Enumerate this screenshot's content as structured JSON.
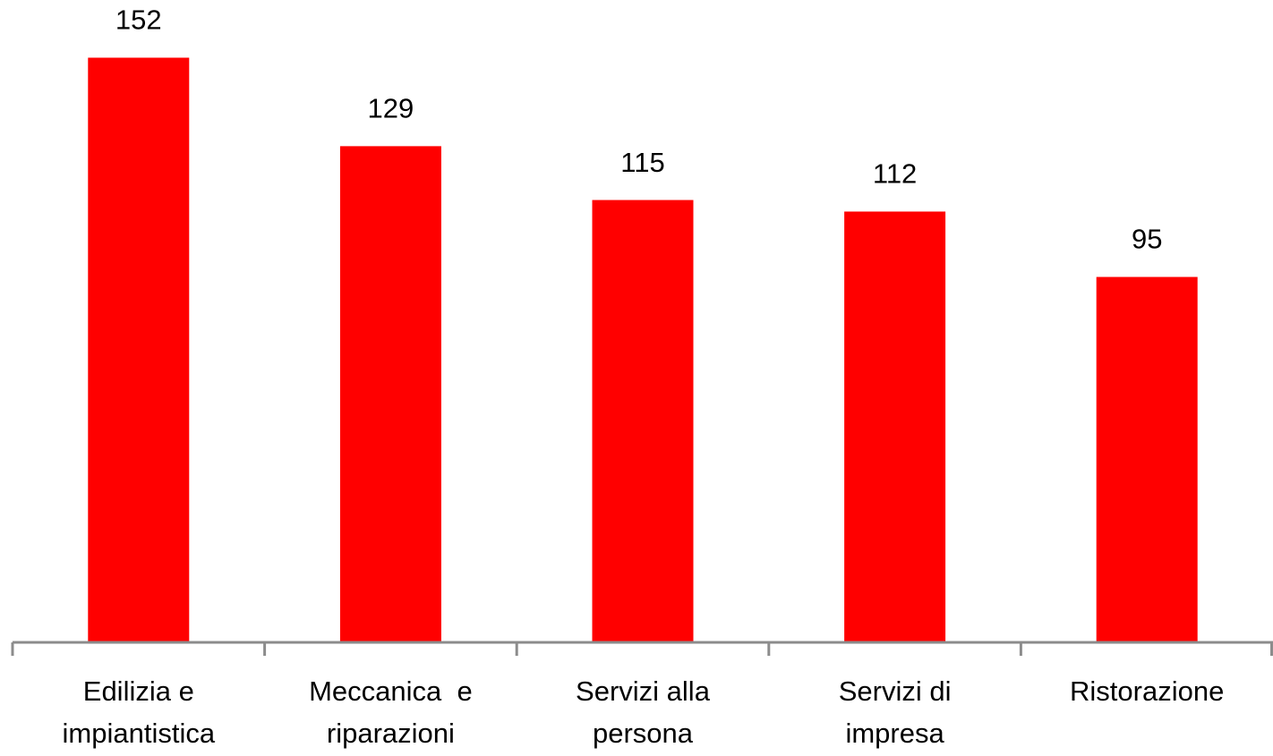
{
  "chart_data": {
    "type": "bar",
    "categories": [
      "Edilizia e\nimpiantistica",
      "Meccanica  e\nriparazioni",
      "Servizi alla\npersona",
      "Servizi di\nimpresa",
      "Ristorazione"
    ],
    "values": [
      152,
      129,
      115,
      112,
      95
    ],
    "color": "#ff0000",
    "ylim": [
      0,
      167
    ]
  }
}
